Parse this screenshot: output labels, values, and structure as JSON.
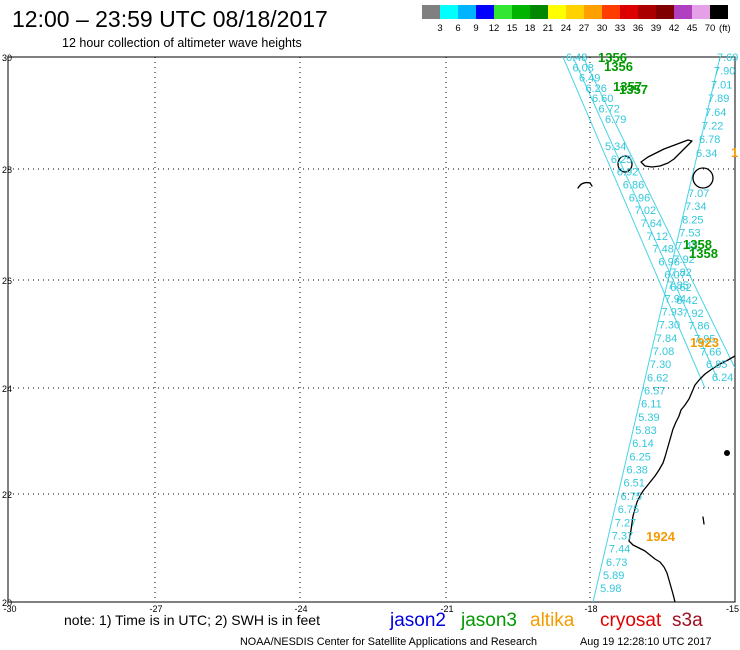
{
  "header": {
    "title": "12:00 – 23:59 UTC 08/18/2017",
    "subtitle": "12 hour collection of altimeter wave heights"
  },
  "colorbar": {
    "colors": [
      "#808080",
      "#00ffff",
      "#00b4ff",
      "#0000ff",
      "#32e632",
      "#00b400",
      "#008800",
      "#ffff00",
      "#ffd200",
      "#ffa000",
      "#ff3c00",
      "#dc0000",
      "#aa0000",
      "#800000",
      "#b040c0",
      "#e6a0e6",
      "#000000"
    ],
    "labels": [
      "3",
      "6",
      "9",
      "12",
      "15",
      "18",
      "21",
      "24",
      "27",
      "30",
      "33",
      "36",
      "39",
      "42",
      "45",
      "70"
    ],
    "unit": "(ft)"
  },
  "map": {
    "lat_labels": [
      "30",
      "28",
      "26",
      "24",
      "22",
      "20"
    ],
    "lon_labels": [
      "-30",
      "-27",
      "-24",
      "-21",
      "-18",
      "-15"
    ],
    "swh_label_color": "#33c8dc",
    "track_line_color": "#48d4e6",
    "coast_color": "#000000",
    "tracks": [
      {
        "heights": [
          "6.48",
          "6.08",
          "6.49",
          "6.26",
          "6.60",
          "6.72",
          "6.79"
        ]
      },
      {
        "heights": [
          "5.34",
          "6.25",
          "6.92",
          "6.86",
          "6.96",
          "7.02",
          "7.64",
          "7.12",
          "7.48",
          "6.96",
          "6.07",
          "6.62",
          "6.42",
          "7.92",
          "7.86",
          "7.95",
          "7.66",
          "6.85",
          "6.24"
        ]
      },
      {
        "heights": [
          "7.69",
          "7.90",
          "7.01",
          "7.89",
          "7.64",
          "7.22",
          "6.78",
          "6.34"
        ]
      },
      {
        "heights": [
          "7.07",
          "7.34",
          "8.25",
          "7.53",
          "7.42",
          "7.92",
          "7.82",
          "7.85",
          "7.94",
          "7.93",
          "7.30",
          "7.84",
          "7.08",
          "7.30",
          "6.62",
          "6.57",
          "6.11",
          "5.39",
          "5.83",
          "6.14",
          "6.25",
          "6.38",
          "6.51",
          "6.75",
          "6.75",
          "7.27",
          "7.37",
          "7.44",
          "6.73",
          "5.89",
          "5.98"
        ]
      }
    ],
    "passes": [
      {
        "label": "1356",
        "satellite": "jason3"
      },
      {
        "label": "1356",
        "satellite": "jason3"
      },
      {
        "label": "1357",
        "satellite": "jason3"
      },
      {
        "label": "1357",
        "satellite": "jason3"
      },
      {
        "label": "1358",
        "satellite": "jason3"
      },
      {
        "label": "1358",
        "satellite": "jason3"
      },
      {
        "label": "1923",
        "satellite": "altika"
      },
      {
        "label": "1924",
        "satellite": "altika"
      },
      {
        "label": "1",
        "satellite": "altika"
      }
    ]
  },
  "legend": {
    "note": "note: 1) Time is in UTC; 2) SWH is in feet",
    "satellites": [
      {
        "name": "jason2",
        "color": "#0000dd"
      },
      {
        "name": "jason3",
        "color": "#009900"
      },
      {
        "name": "altika",
        "color": "#f59a00"
      },
      {
        "name": "cryosat",
        "color": "#e00000"
      },
      {
        "name": "s3a",
        "color": "#a01020"
      }
    ]
  },
  "footer": {
    "credit": "NOAA/NESDIS Center for Satellite Applications and Research",
    "timestamp": "Aug 19 12:28:10 UTC 2017"
  }
}
